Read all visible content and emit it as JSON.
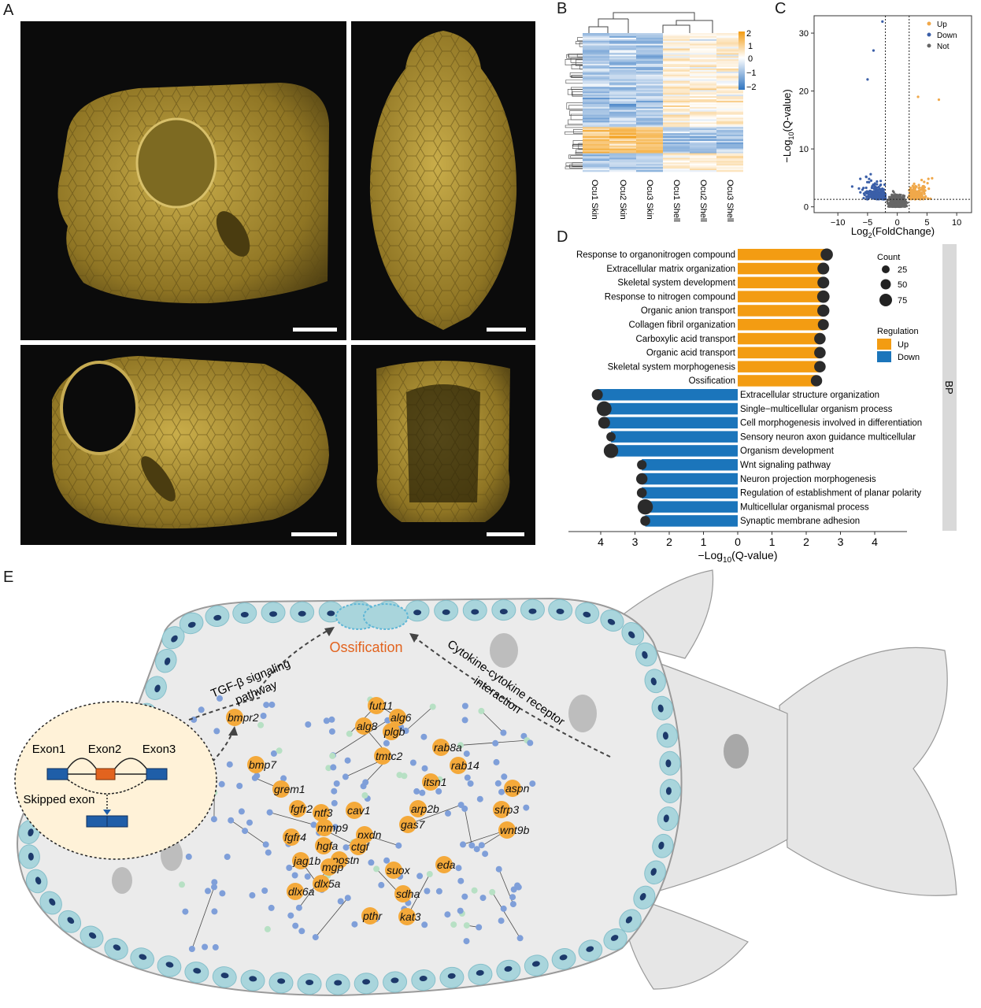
{
  "figure": {
    "panel_labels": {
      "A": "A",
      "B": "B",
      "C": "C",
      "D": "D",
      "E": "E"
    }
  },
  "panel_A": {
    "images": [
      "boxfish-shell-lateral",
      "boxfish-shell-dorsal",
      "boxfish-shell-lateral-cut",
      "boxfish-shell-anterior"
    ],
    "scale_bar_color": "#ffffff",
    "shell_color": "#b49a3c"
  },
  "panel_B": {
    "samples": [
      "Ocu1 Skin",
      "Ocu2 Skin",
      "Ocu3 Skin",
      "Ocu1 Shell",
      "Ocu2 Shell",
      "Ocu3 Shell"
    ],
    "colorbar_ticks": [
      "2",
      "1",
      "0",
      "−1",
      "−2"
    ],
    "colors": {
      "high": "#f39c12",
      "mid": "#ffffff",
      "low": "#2f74c0"
    }
  },
  "panel_C": {
    "chart_data": {
      "type": "scatter",
      "title": "",
      "xlabel": "Log2(FoldChange)",
      "xlabel_main": "Log",
      "xlabel_sub": "2",
      "xlabel_rest": "(FoldChange)",
      "ylabel_main": "−Log",
      "ylabel_sub": "10",
      "ylabel_rest": "(Q-value)",
      "x_ticks": [
        "−10",
        "−5",
        "0",
        "5",
        "10"
      ],
      "y_ticks": [
        "0",
        "10",
        "20",
        "30"
      ],
      "xlim": [
        -14,
        12.5
      ],
      "ylim": [
        -1,
        33
      ],
      "threshold_x": [
        -2,
        2
      ],
      "threshold_y": 1.3,
      "legend": [
        "Up",
        "Down",
        "Not"
      ],
      "legend_position": "top-right",
      "colors": {
        "Up": "#f0a84a",
        "Down": "#3b5fa8",
        "Not": "#666666"
      }
    }
  },
  "panel_D": {
    "chart_data": {
      "type": "bar",
      "xlabel_main": "−Log",
      "xlabel_sub": "10",
      "xlabel_rest": "(Q-value)",
      "x_ticks": [
        "4",
        "3",
        "2",
        "1",
        "0",
        "1",
        "2",
        "3",
        "4"
      ],
      "xlim": [
        -4.8,
        4.8
      ],
      "side_label": "BP",
      "size_legend_title": "Count",
      "size_legend": [
        "25",
        "50",
        "75"
      ],
      "color_legend_title": "Regulation",
      "color_legend": [
        "Up",
        "Down"
      ],
      "colors": {
        "Up": "#f39c12",
        "Down": "#1b75bb"
      },
      "series": [
        {
          "name": "Up",
          "categories": [
            "Response to organonitrogen compound",
            "Extracellular matrix organization",
            "Skeletal system development",
            "Response to nitrogen compound",
            "Organic anion transport",
            "Collagen fibril organization",
            "Carboxylic acid transport",
            "Organic acid transport",
            "Skeletal system morphogenesis",
            "Ossification"
          ],
          "values": [
            2.6,
            2.5,
            2.5,
            2.5,
            2.5,
            2.5,
            2.4,
            2.4,
            2.4,
            2.3
          ],
          "counts": [
            40,
            35,
            35,
            42,
            38,
            25,
            30,
            30,
            30,
            28
          ]
        },
        {
          "name": "Down",
          "categories": [
            "Extracellular structure organization",
            "Single−multicellular organism process",
            "Cell morphogenesis involved in differentiation",
            "Sensory neuron axon guidance multicellular",
            "Organism development",
            "Wnt signaling pathway",
            "Neuron projection morphogenesis",
            "Regulation of establishment of planar polarity",
            "Multicellular organismal process",
            "Synaptic membrane adhesion"
          ],
          "values": [
            4.1,
            3.9,
            3.9,
            3.7,
            3.7,
            2.8,
            2.8,
            2.8,
            2.7,
            2.7
          ],
          "counts": [
            25,
            80,
            35,
            10,
            75,
            12,
            28,
            15,
            90,
            15
          ]
        }
      ]
    }
  },
  "panel_E": {
    "ossification": "Ossification",
    "pathway_left_1": "TGF-β signaling",
    "pathway_left_2": "pathway",
    "pathway_right_1": "Cytokine-cytokine receptor",
    "pathway_right_2": "interaction",
    "exon1": "Exon1",
    "exon2": "Exon2",
    "exon3": "Exon3",
    "skipped": "Skipped exon",
    "hub_genes": [
      "bmpr2",
      "fut11",
      "alg6",
      "alg8",
      "plgb",
      "tmtc2",
      "rab8a",
      "rab14",
      "bmp7",
      "grem1",
      "itsn1",
      "aspn",
      "fgfr2",
      "ntf3",
      "cav1",
      "arp2b",
      "sfrp3",
      "mmp9",
      "gas7",
      "pxdn",
      "wnt9b",
      "fgfr4",
      "hgfa",
      "ctgf",
      "postn",
      "jag1b",
      "mgp",
      "suox",
      "eda",
      "dlx6a",
      "dlx5a",
      "sdha",
      "pthr",
      "kat3"
    ],
    "colors": {
      "hub": "#f4a93a",
      "node": "#7f9fd9",
      "minor": "#b7e0c4",
      "body": "#ececec",
      "cell": "#a9d5dc",
      "nucleus": "#1d3a6b",
      "title": "#e2631e"
    }
  }
}
